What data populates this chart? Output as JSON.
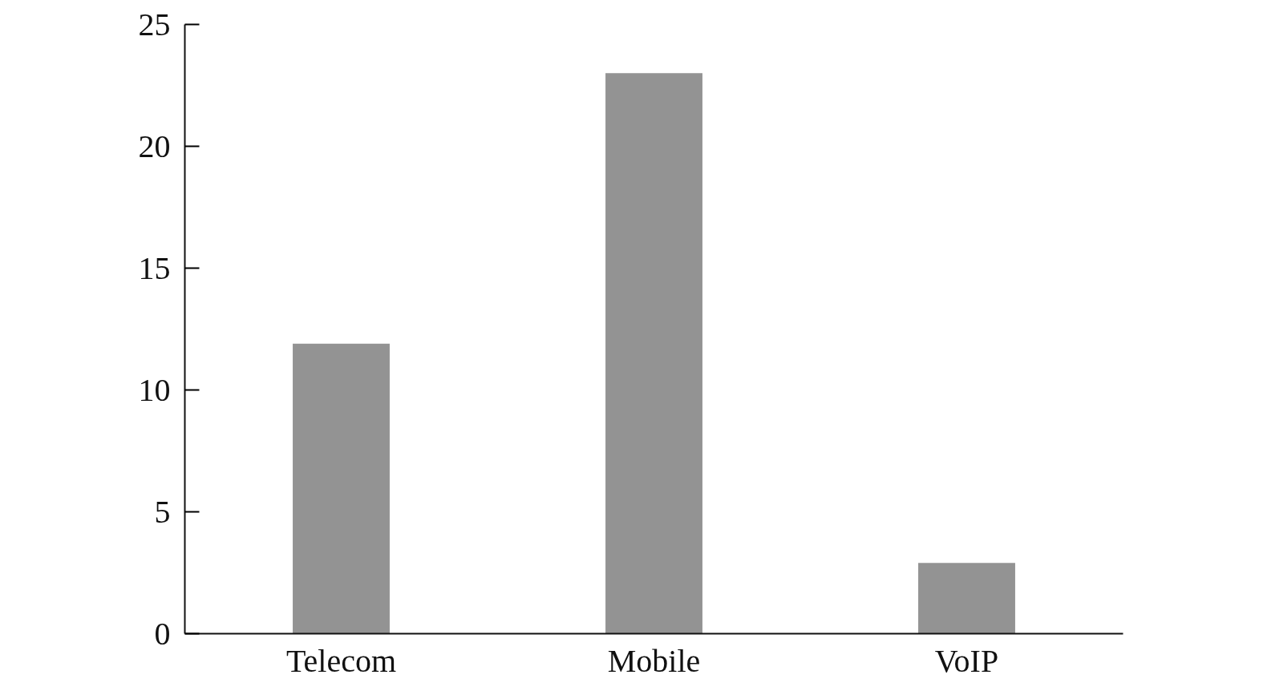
{
  "chart_data": {
    "type": "bar",
    "categories": [
      "Telecom",
      "Mobile",
      "VoIP"
    ],
    "values": [
      11.9,
      23,
      2.9
    ],
    "color": "#939393",
    "ylim": [
      0,
      25
    ],
    "yticks": [
      0,
      5,
      10,
      15,
      20,
      25
    ],
    "grid": false
  }
}
